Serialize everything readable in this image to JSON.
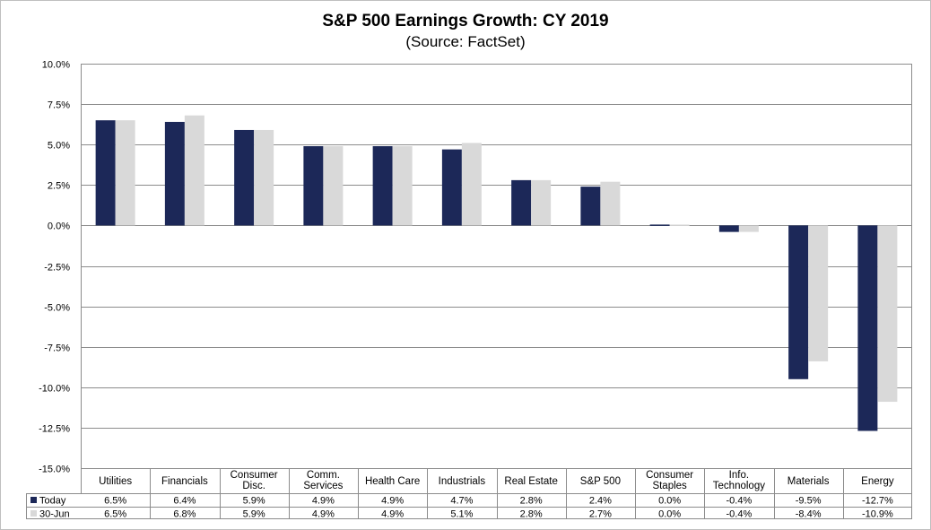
{
  "chart_data": {
    "type": "bar",
    "title": "S&P 500 Earnings Growth: CY 2019",
    "subtitle": "(Source: FactSet)",
    "xlabel": "",
    "ylabel": "",
    "ylim": [
      -15,
      10
    ],
    "yticks": [
      10,
      7.5,
      5,
      2.5,
      0,
      -2.5,
      -5,
      -7.5,
      -10,
      -12.5,
      -15
    ],
    "ytick_labels": [
      "10.0%",
      "7.5%",
      "5.0%",
      "2.5%",
      "0.0%",
      "-2.5%",
      "-5.0%",
      "-7.5%",
      "-10.0%",
      "-12.5%",
      "-15.0%"
    ],
    "grid": true,
    "legend_placement": "bottom data table",
    "categories": [
      [
        "Utilities"
      ],
      [
        "Financials"
      ],
      [
        "Consumer",
        "Disc."
      ],
      [
        "Comm.",
        "Services"
      ],
      [
        "Health Care"
      ],
      [
        "Industrials"
      ],
      [
        "Real Estate"
      ],
      [
        "S&P 500"
      ],
      [
        "Consumer",
        "Staples"
      ],
      [
        "Info.",
        "Technology"
      ],
      [
        "Materials"
      ],
      [
        "Energy"
      ]
    ],
    "series": [
      {
        "name": "Today",
        "color": "#1c2858",
        "values": [
          6.5,
          6.4,
          5.9,
          4.9,
          4.9,
          4.7,
          2.8,
          2.4,
          0.0,
          -0.4,
          -9.5,
          -12.7
        ],
        "labels": [
          "6.5%",
          "6.4%",
          "5.9%",
          "4.9%",
          "4.9%",
          "4.7%",
          "2.8%",
          "2.4%",
          "0.0%",
          "-0.4%",
          "-9.5%",
          "-12.7%"
        ]
      },
      {
        "name": "30-Jun",
        "color": "#d9d9d9",
        "values": [
          6.5,
          6.8,
          5.9,
          4.9,
          4.9,
          5.1,
          2.8,
          2.7,
          0.0,
          -0.4,
          -8.4,
          -10.9
        ],
        "labels": [
          "6.5%",
          "6.8%",
          "5.9%",
          "4.9%",
          "4.9%",
          "5.1%",
          "2.8%",
          "2.7%",
          "0.0%",
          "-0.4%",
          "-8.4%",
          "-10.9%"
        ]
      }
    ]
  }
}
